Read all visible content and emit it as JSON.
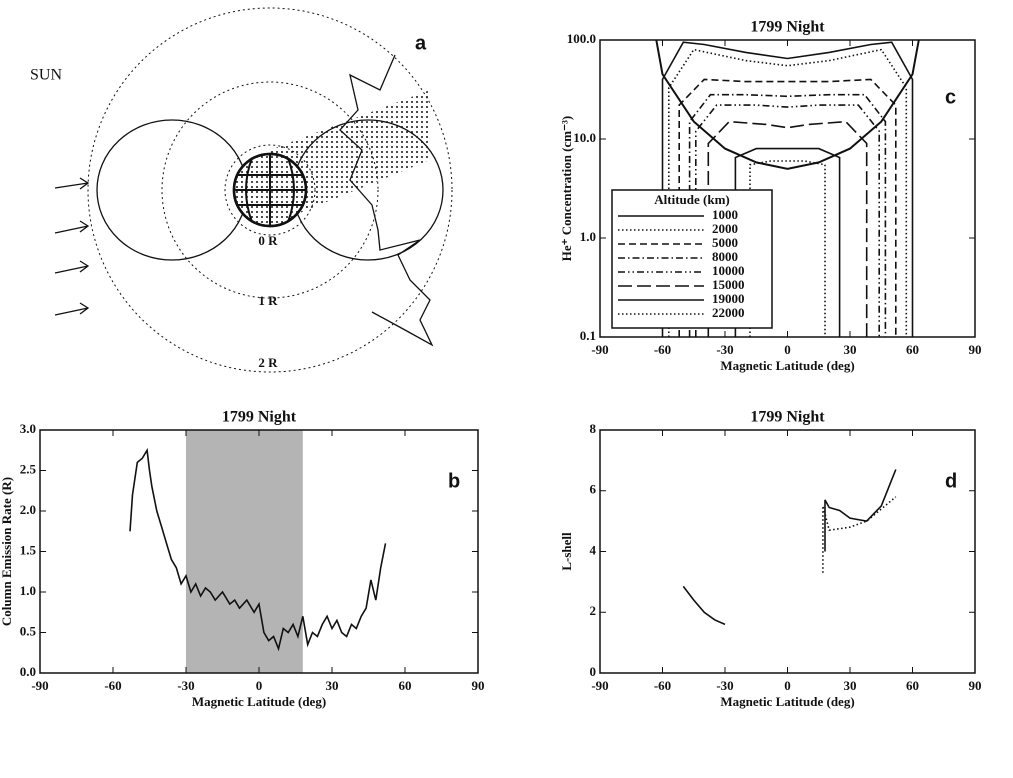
{
  "chart_data": [
    {
      "type": "diagram",
      "label": "a",
      "text": "SUN",
      "ring_labels": [
        "0 R",
        "1 R",
        "2 R"
      ]
    },
    {
      "type": "line",
      "label": "b",
      "title": "1799 Night",
      "xlabel": "Magnetic Latitude (deg)",
      "ylabel": "Column Emission Rate (R)",
      "xlim": [
        -90,
        90
      ],
      "xticks": [
        -90,
        -60,
        -30,
        0,
        30,
        60,
        90
      ],
      "ylim": [
        0,
        3
      ],
      "yticks": [
        {
          "value": 0,
          "label": "0.0"
        },
        {
          "value": 0.5,
          "label": "0.5"
        },
        {
          "value": 1,
          "label": "1.0"
        },
        {
          "value": 1.5,
          "label": "1.5"
        },
        {
          "value": 2,
          "label": "2.0"
        },
        {
          "value": 2.5,
          "label": "2.5"
        },
        {
          "value": 3,
          "label": "3.0"
        }
      ],
      "shade": [
        -30,
        18
      ],
      "shade_color": "#b4b4b4",
      "series": [
        {
          "color": "#111111",
          "dash": "solid",
          "x": [
            -53,
            -52,
            -50,
            -48,
            -46,
            -45,
            -44,
            -42,
            -40,
            -38,
            -36,
            -34,
            -32,
            -30,
            -28,
            -26,
            -24,
            -22,
            -20,
            -18,
            -15,
            -12,
            -10,
            -8,
            -5,
            -2,
            0,
            2,
            4,
            6,
            8,
            10,
            12,
            14,
            16,
            18,
            20,
            22,
            24,
            26,
            28,
            30,
            32,
            34,
            36,
            38,
            40,
            42,
            44,
            46,
            48,
            50,
            52
          ],
          "values": [
            1.75,
            2.2,
            2.6,
            2.65,
            2.75,
            2.5,
            2.3,
            2.0,
            1.8,
            1.6,
            1.4,
            1.3,
            1.1,
            1.2,
            1.0,
            1.1,
            0.95,
            1.05,
            1.0,
            0.9,
            1.0,
            0.85,
            0.9,
            0.8,
            0.9,
            0.75,
            0.85,
            0.5,
            0.4,
            0.45,
            0.3,
            0.55,
            0.5,
            0.6,
            0.45,
            0.7,
            0.35,
            0.5,
            0.45,
            0.6,
            0.7,
            0.55,
            0.65,
            0.5,
            0.45,
            0.6,
            0.55,
            0.7,
            0.8,
            1.15,
            0.9,
            1.3,
            1.6
          ]
        }
      ]
    },
    {
      "type": "line",
      "label": "c",
      "title": "1799 Night",
      "xlabel": "Magnetic Latitude (deg)",
      "ylabel": "He⁺ Concentration (cm⁻³)",
      "xlim": [
        -90,
        90
      ],
      "xticks": [
        -90,
        -60,
        -30,
        0,
        30,
        60,
        90
      ],
      "ylim": [
        0.1,
        100
      ],
      "ylog": true,
      "yticks": [
        0.1,
        {
          "value": 1,
          "label": "1.0"
        },
        {
          "value": 10,
          "label": "10.0"
        },
        {
          "value": 100,
          "label": "100.0"
        }
      ],
      "legend_title": "Altitude (km)",
      "boundary": {
        "x": [
          -63,
          -60,
          -45,
          -30,
          -15,
          0,
          15,
          30,
          45,
          60,
          63
        ],
        "values": [
          100,
          45,
          15,
          8,
          5.8,
          5,
          5.8,
          8,
          15,
          45,
          100
        ]
      },
      "series": [
        {
          "name": "1000",
          "color": "#111111",
          "dash": "solid",
          "x": [
            -60,
            -60,
            -50,
            -40,
            -20,
            0,
            20,
            40,
            50,
            60,
            60
          ],
          "values": [
            0.1,
            40,
            95,
            90,
            75,
            65,
            75,
            90,
            95,
            40,
            0.1
          ]
        },
        {
          "name": "2000",
          "color": "#111111",
          "dash": "dotted",
          "x": [
            -57,
            -57,
            -45,
            -20,
            0,
            20,
            45,
            57,
            57
          ],
          "values": [
            0.1,
            33,
            80,
            62,
            55,
            62,
            80,
            33,
            0.1
          ]
        },
        {
          "name": "5000",
          "color": "#111111",
          "dash": "dashed",
          "x": [
            -52,
            -52,
            -40,
            -20,
            0,
            20,
            40,
            52,
            52
          ],
          "values": [
            0.1,
            22,
            40,
            38,
            38,
            38,
            40,
            22,
            0.1
          ]
        },
        {
          "name": "8000",
          "color": "#111111",
          "dash": "dashdot",
          "x": [
            -47,
            -47,
            -37,
            -20,
            0,
            20,
            37,
            47,
            47
          ],
          "values": [
            0.1,
            15,
            28,
            28,
            27,
            28,
            28,
            15,
            0.1
          ]
        },
        {
          "name": "10000",
          "color": "#111111",
          "dash": "dashdotdot",
          "x": [
            -44,
            -44,
            -34,
            -15,
            0,
            15,
            34,
            44,
            44
          ],
          "values": [
            0.1,
            12,
            22,
            22,
            21,
            22,
            22,
            12,
            0.1
          ]
        },
        {
          "name": "15000",
          "color": "#111111",
          "dash": "longdash",
          "x": [
            -38,
            -38,
            -28,
            -10,
            0,
            10,
            28,
            38,
            38
          ],
          "values": [
            0.1,
            9,
            15,
            14,
            13,
            14,
            15,
            9,
            0.1
          ]
        },
        {
          "name": "19000",
          "color": "#111111",
          "dash": "solid",
          "x": [
            -25,
            -25,
            -15,
            -5,
            0,
            5,
            15,
            25,
            25
          ],
          "values": [
            0.1,
            6.5,
            8,
            8,
            8,
            8,
            8,
            6.5,
            0.1
          ]
        },
        {
          "name": "22000",
          "color": "#111111",
          "dash": "dotted",
          "x": [
            -18,
            -18,
            -8,
            -4,
            0,
            4,
            8,
            18,
            18
          ],
          "values": [
            0.1,
            5.5,
            6,
            6,
            6,
            6,
            6,
            5.5,
            0.1
          ]
        }
      ]
    },
    {
      "type": "line",
      "label": "d",
      "title": "1799 Night",
      "xlabel": "Magnetic Latitude (deg)",
      "ylabel": "L-shell",
      "xlim": [
        -90,
        90
      ],
      "xticks": [
        -90,
        -60,
        -30,
        0,
        30,
        60,
        90
      ],
      "ylim": [
        0,
        8
      ],
      "yticks": [
        0,
        2,
        4,
        6,
        8
      ],
      "series": [
        {
          "color": "#111111",
          "dash": "solid",
          "x": [
            -50,
            -45,
            -40,
            -35,
            -30,
            null,
            18,
            18,
            20,
            25,
            30,
            38,
            45,
            52
          ],
          "values": [
            2.85,
            2.4,
            2.0,
            1.75,
            1.6,
            null,
            4.0,
            5.7,
            5.45,
            5.35,
            5.1,
            5.0,
            5.5,
            6.7
          ]
        },
        {
          "color": "#111111",
          "dash": "dotted",
          "x": [
            17,
            17,
            20,
            30,
            38,
            45,
            52
          ],
          "values": [
            3.3,
            5.5,
            4.7,
            4.8,
            5.0,
            5.4,
            5.8
          ]
        }
      ]
    }
  ]
}
